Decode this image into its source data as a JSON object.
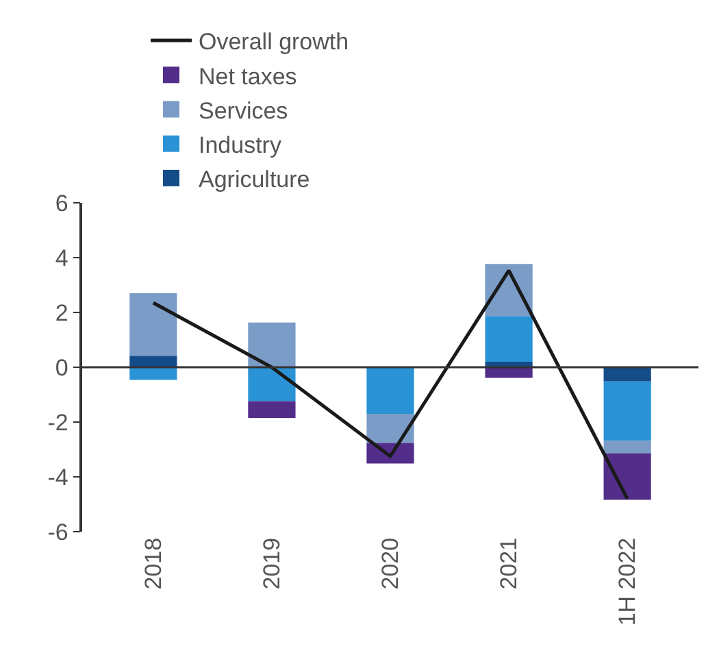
{
  "chart_data": {
    "type": "bar",
    "stacked": true,
    "categories": [
      "2018",
      "2019",
      "2020",
      "2021",
      "1H 2022"
    ],
    "series": [
      {
        "name": "Agriculture",
        "color": "#144b89",
        "values": [
          0.42,
          0,
          0,
          0.2,
          -0.52
        ]
      },
      {
        "name": "Industry",
        "color": "#2a93d5",
        "values": [
          -0.46,
          -1.24,
          -1.7,
          1.67,
          -2.16
        ]
      },
      {
        "name": "Services",
        "color": "#7a9cc6",
        "values": [
          2.28,
          1.63,
          -1.06,
          1.9,
          -0.46
        ]
      },
      {
        "name": "Net taxes",
        "color": "#532d8a",
        "values": [
          0,
          -0.61,
          -0.75,
          -0.39,
          -1.7
        ]
      },
      {
        "name": "Overall growth",
        "type": "line",
        "color": "#1a1a1a",
        "values": [
          2.35,
          0,
          -3.25,
          3.53,
          -4.8
        ]
      }
    ],
    "ylim": [
      -6,
      6
    ],
    "yticks": [
      -6,
      -4,
      -2,
      0,
      2,
      4,
      6
    ],
    "ref_lines": [
      {
        "axis": "y",
        "value": 0,
        "color": "#333333"
      }
    ],
    "legend": "top left",
    "marker": "none"
  }
}
